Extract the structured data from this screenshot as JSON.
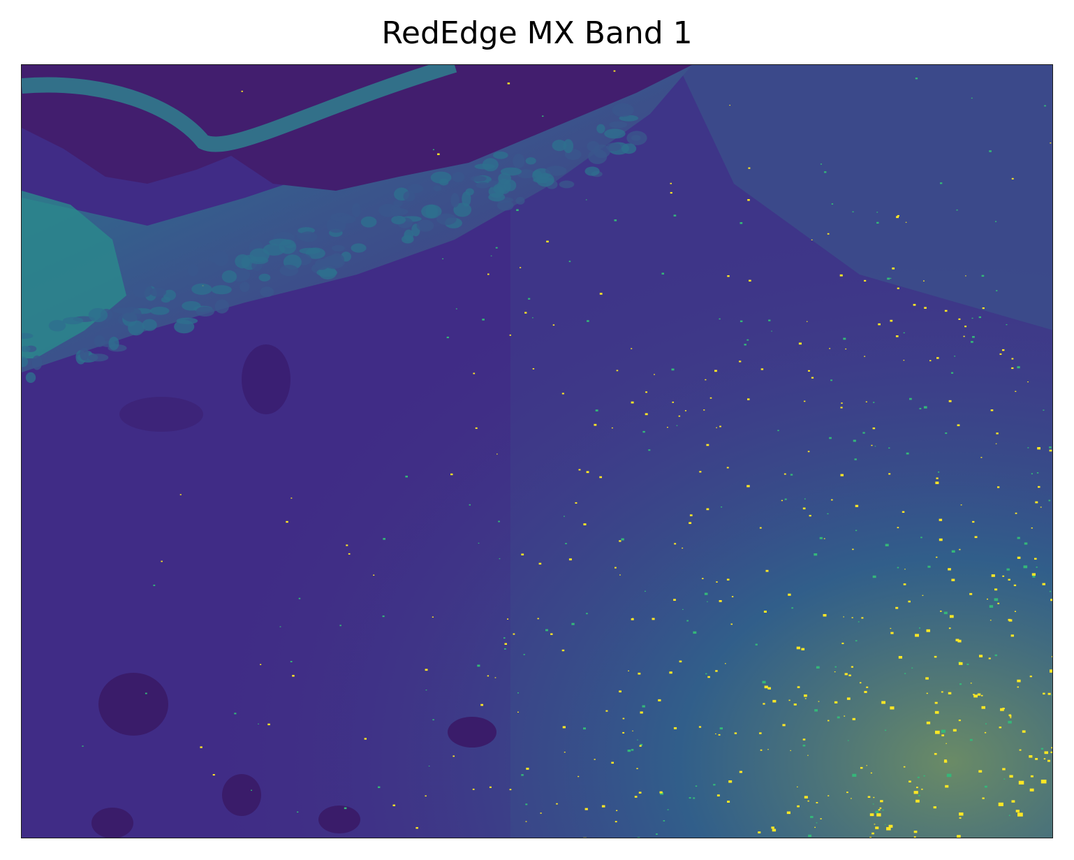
{
  "title": "RedEdge MX Band 1",
  "image": {
    "description_icon": "multispectral-band-image",
    "colormap": "viridis",
    "colors": {
      "dark": "#3b1f6e",
      "base": "#3f2d86",
      "mid": "#2e6f8e",
      "teal": "#21918c",
      "bright": "#fde725"
    }
  }
}
